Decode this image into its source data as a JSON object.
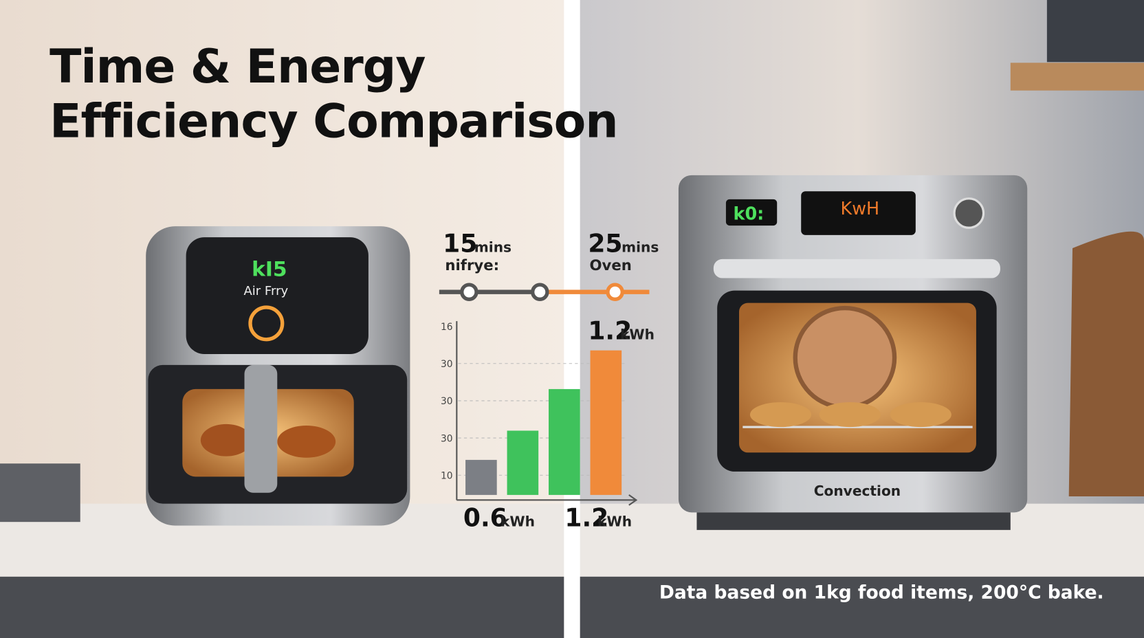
{
  "title": [
    "Time & Energy",
    "Efficiency Comparison"
  ],
  "air_fryer": {
    "display": "kI5",
    "label": "Air Frry"
  },
  "timeline": {
    "left_time": "15",
    "left_unit": "mins",
    "left_label": "nifrye:",
    "right_time": "25",
    "right_unit": "mins",
    "right_label": "Oven"
  },
  "energy_chart": {
    "y_labels": [
      "16",
      "30",
      "30",
      "30",
      "10"
    ],
    "top_label": {
      "value": "1.2",
      "unit": "kWh"
    },
    "bottom_labels": [
      {
        "value": "0.6",
        "unit": "kWh"
      },
      {
        "value": "1.2",
        "unit": "kWh"
      }
    ]
  },
  "oven": {
    "display_left": "k0:",
    "display_center": "KwH",
    "label": "Convection"
  },
  "footnote": "Data based on 1kg food items, 200°C bake."
}
